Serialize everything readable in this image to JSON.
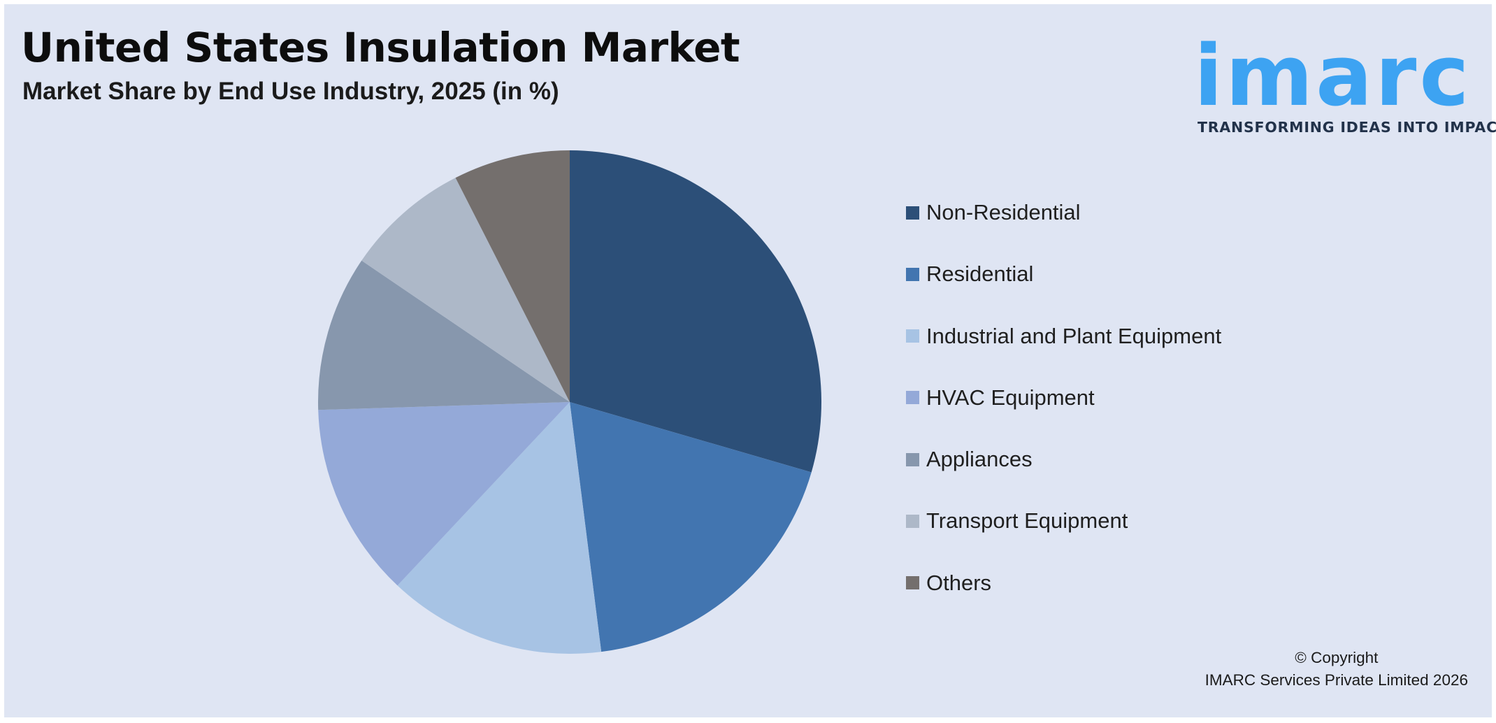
{
  "header": {
    "title": "United States Insulation Market",
    "subtitle": "Market Share by End Use Industry, 2025 (in %)"
  },
  "logo": {
    "word": "imarc",
    "tagline": "TRANSFORMING IDEAS INTO IMPACT",
    "color": "#3da3f2"
  },
  "chart_data": {
    "type": "pie",
    "title": "United States Insulation Market",
    "subtitle": "Market Share by End Use Industry, 2025 (in %)",
    "start_angle_deg": 0,
    "direction": "clockwise",
    "legend_position": "right",
    "slices": [
      {
        "label": "Non-Residential",
        "value": 29.5,
        "color": "#2c4f78"
      },
      {
        "label": "Residential",
        "value": 18.5,
        "color": "#4275b0"
      },
      {
        "label": "Industrial and Plant Equipment",
        "value": 14.0,
        "color": "#a7c3e4"
      },
      {
        "label": "HVAC Equipment",
        "value": 12.5,
        "color": "#94a9d8"
      },
      {
        "label": "Appliances",
        "value": 10.0,
        "color": "#8797ad"
      },
      {
        "label": "Transport Equipment",
        "value": 8.0,
        "color": "#adb8c8"
      },
      {
        "label": "Others",
        "value": 7.5,
        "color": "#746f6d"
      }
    ]
  },
  "footer": {
    "copyright_line1": "© Copyright",
    "copyright_line2": "IMARC Services Private Limited 2026"
  }
}
